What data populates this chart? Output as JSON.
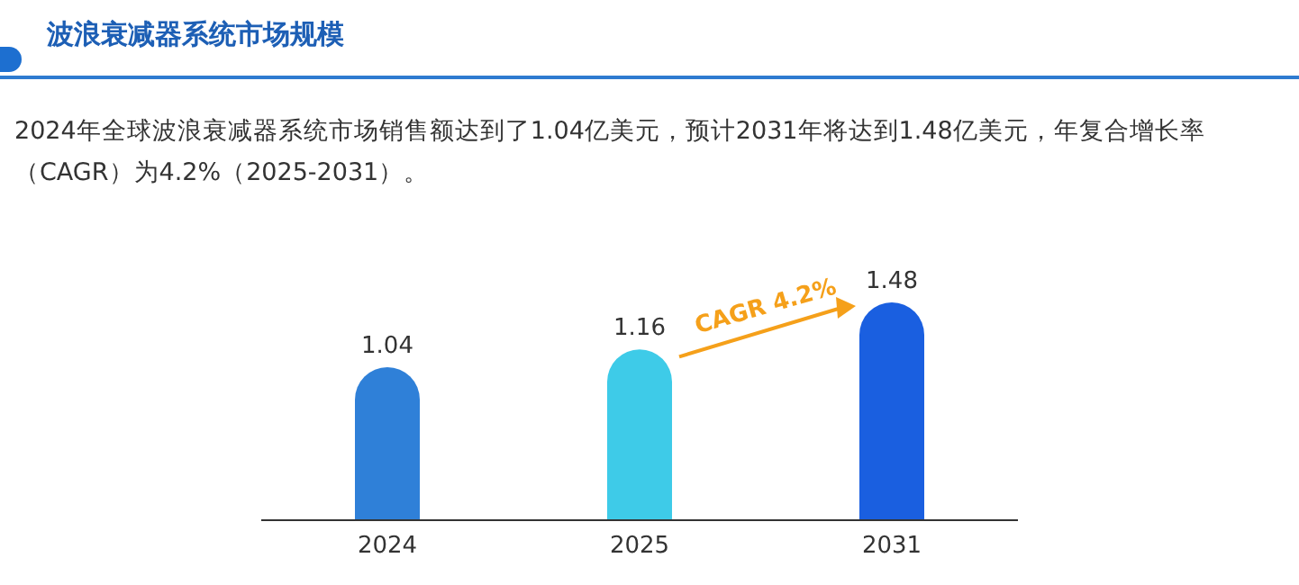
{
  "chart_data": {
    "type": "bar",
    "relative": false,
    "title": "波浪衰减器系统市场规模",
    "subtitle": "2024年全球波浪衰减器系统市场销售额达到了1.04亿美元，预计2031年将达到1.48亿美元，年复合增长率（CAGR）为4.2%（2025-2031）。",
    "categories": [
      "2024",
      "2025",
      "2031"
    ],
    "values": [
      1.04,
      1.16,
      1.48
    ],
    "colors": [
      "#2f80d8",
      "#3ecbe8",
      "#1a5fe0"
    ],
    "data_labels": true,
    "annotations": [
      "CAGR 4.2%"
    ]
  }
}
